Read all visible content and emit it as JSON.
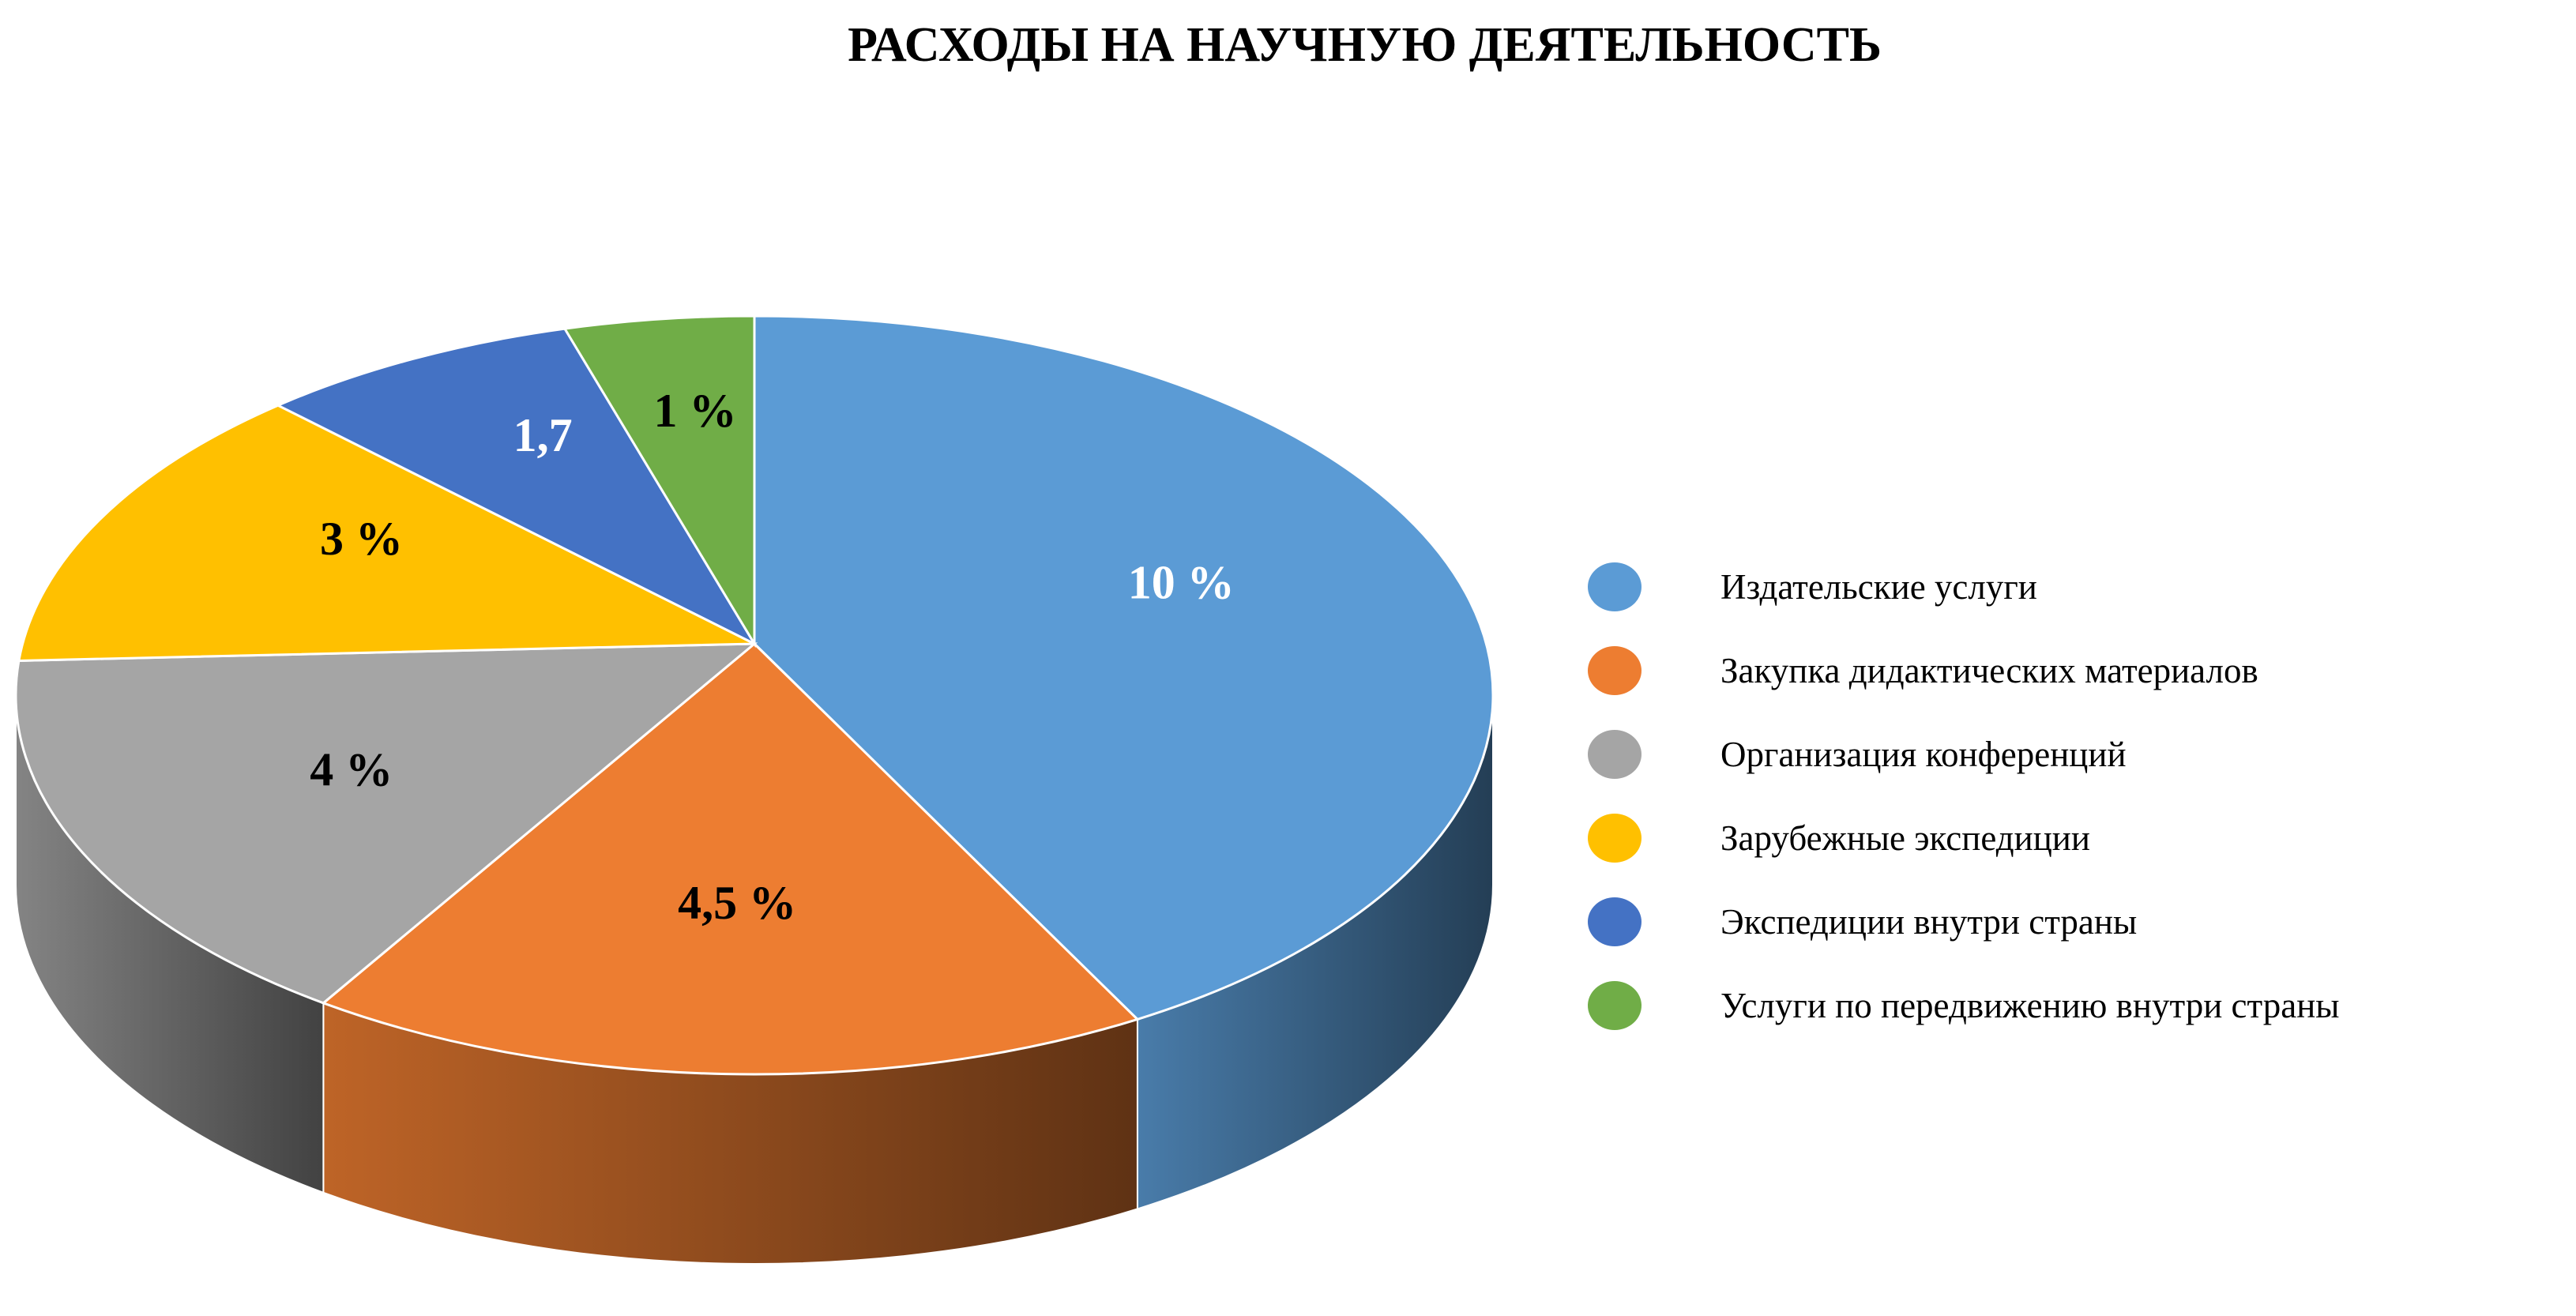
{
  "chart_data": {
    "type": "pie",
    "title": "РАСХОДЫ НА НАУЧНУЮ ДЕЯТЕЛЬНОСТЬ",
    "categories": [
      "Издательские услуги",
      "Закупка дидактических материалов",
      "Организация конференций",
      "Зарубежные экспедиции",
      "Экспедиции внутри страны",
      "Услуги по передвижению внутри страны"
    ],
    "values": [
      10,
      4.5,
      4,
      3,
      1.7,
      1
    ],
    "data_labels": [
      "10 %",
      "4,5 %",
      "4 %",
      "3 %",
      "1,7",
      "1 %"
    ],
    "label_colors": [
      "#ffffff",
      "#000000",
      "#000000",
      "#000000",
      "#ffffff",
      "#000000"
    ],
    "colors": [
      "#5b9bd5",
      "#ed7d31",
      "#a5a5a5",
      "#ffc000",
      "#4472c4",
      "#70ad47"
    ],
    "legend_position": "right",
    "style": "3d"
  }
}
